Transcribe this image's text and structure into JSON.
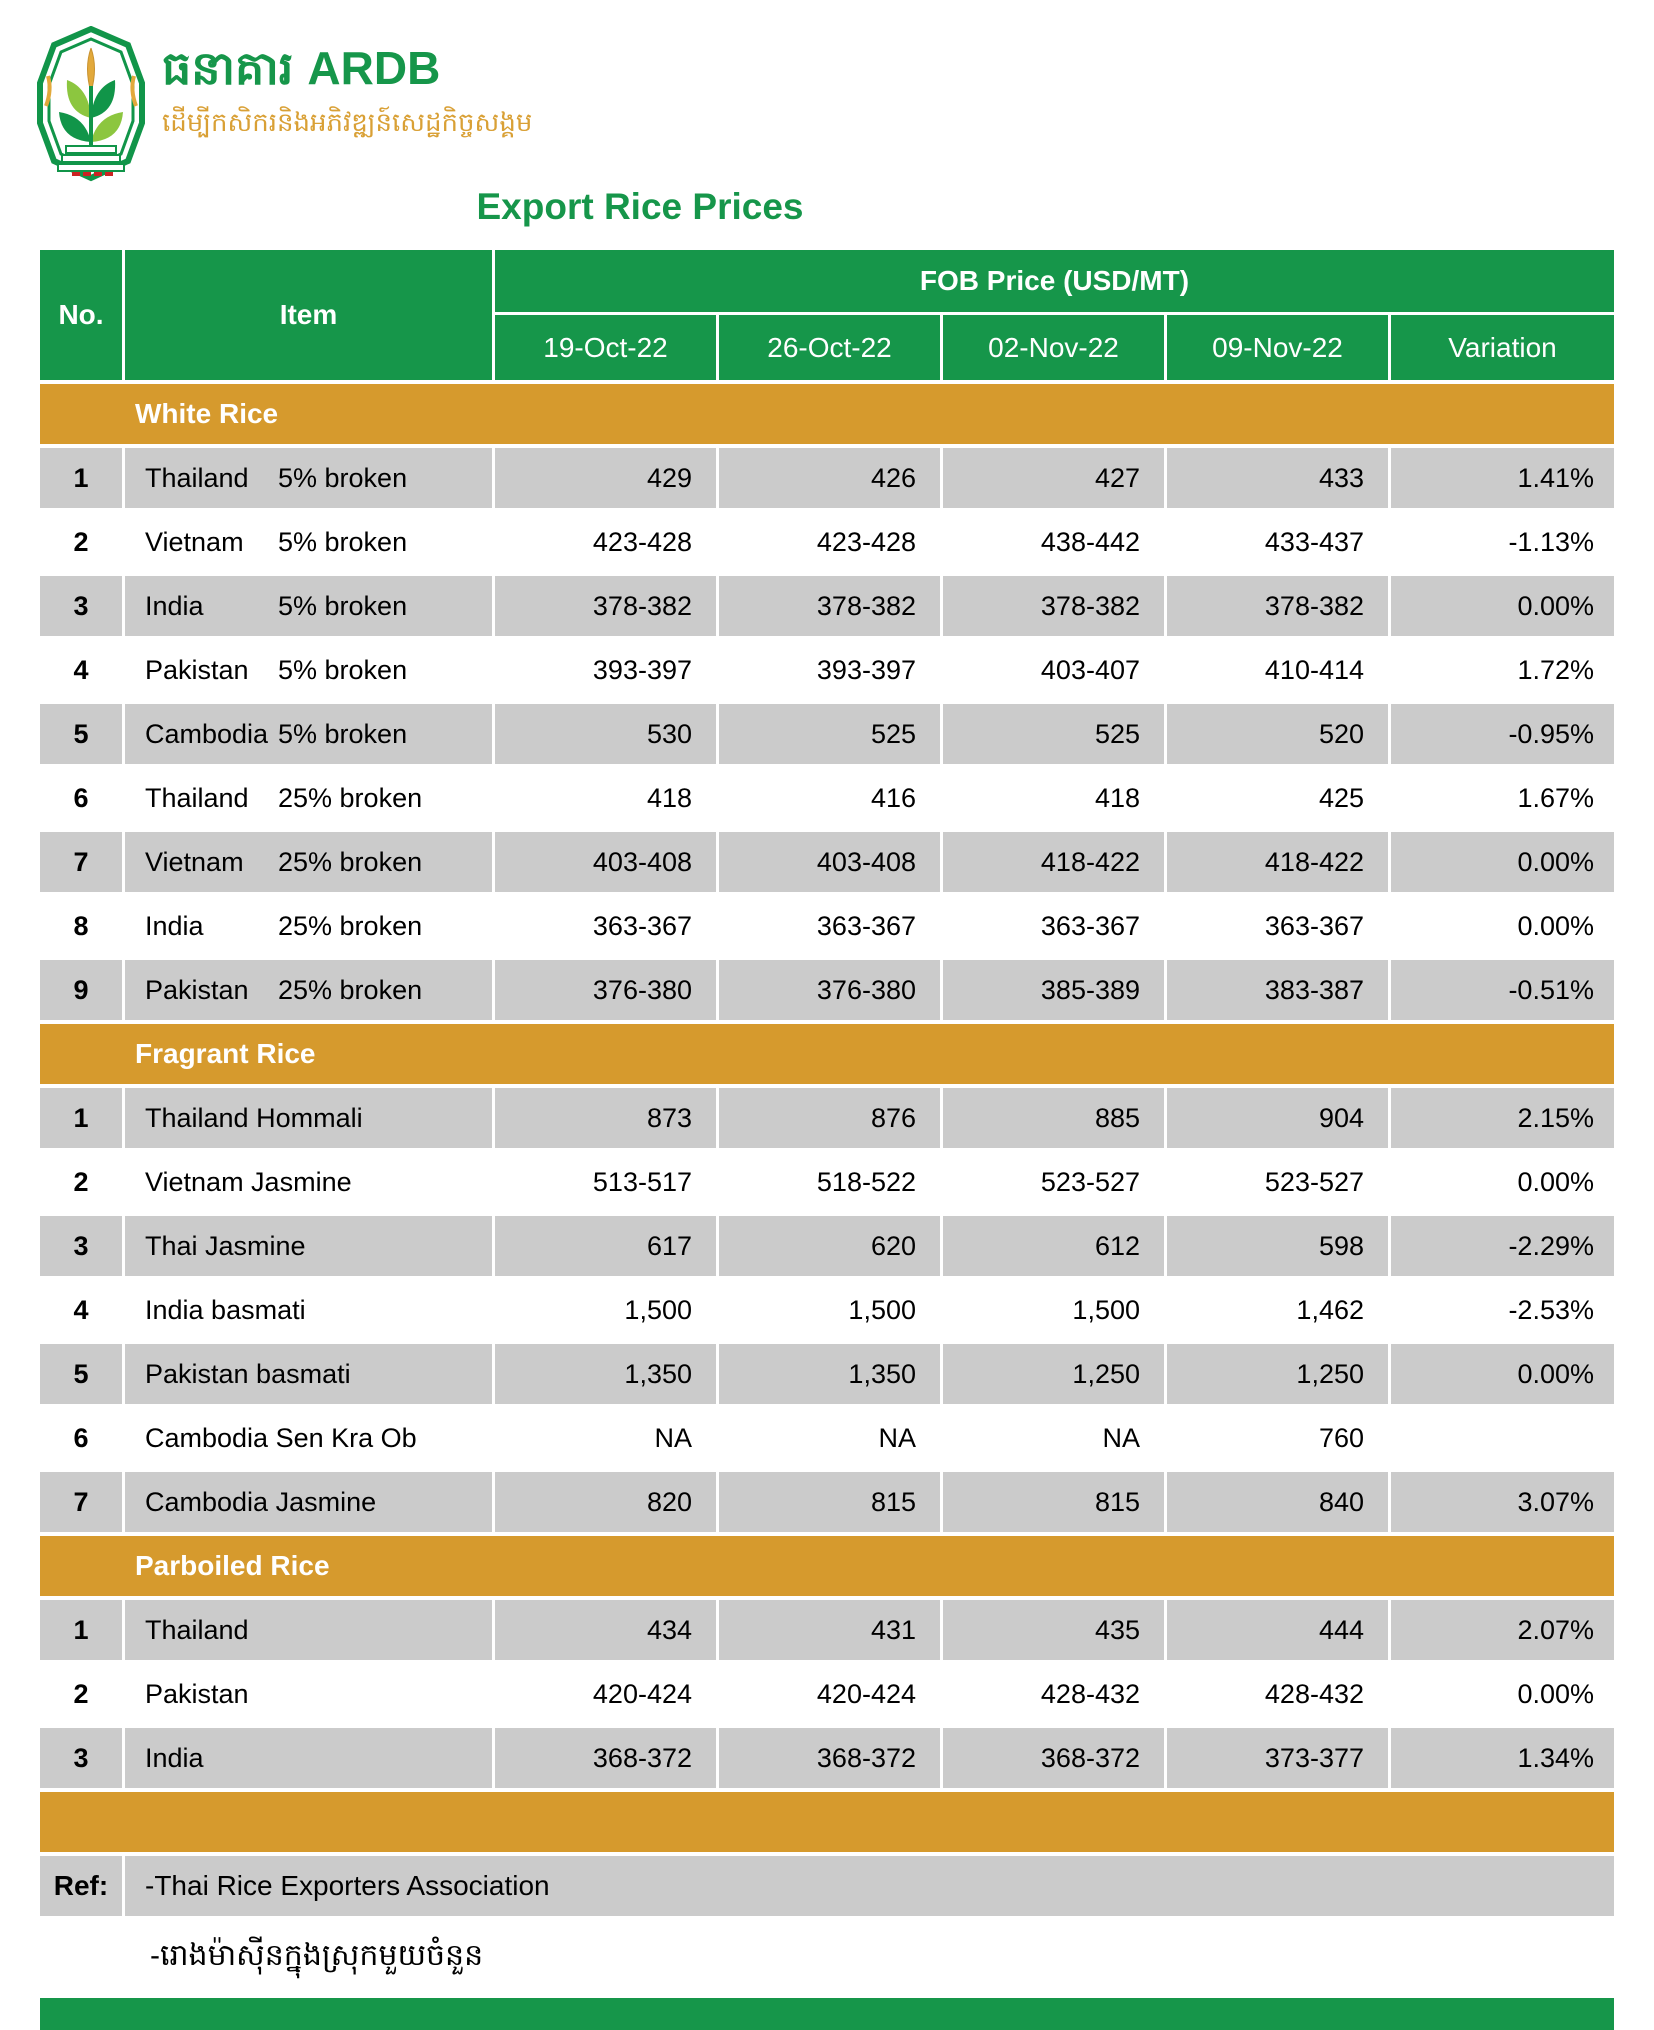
{
  "brand": {
    "khmer_name": "ធនាគារ",
    "latin_name": "ARDB",
    "tagline": "ដើម្បីកសិករនិងអភិវឌ្ឍន៍សេដ្ឋកិច្ចសង្គម"
  },
  "title": "Export Rice Prices",
  "table": {
    "col_no": "No.",
    "col_item": "Item",
    "col_group": "FOB Price (USD/MT)",
    "date_cols": [
      "19-Oct-22",
      "26-Oct-22",
      "02-Nov-22",
      "09-Nov-22"
    ],
    "col_variation": "Variation",
    "sections": [
      {
        "name": "White Rice",
        "rows": [
          {
            "no": "1",
            "name": "Thailand",
            "spec": "5% broken",
            "prices": [
              "429",
              "426",
              "427",
              "433"
            ],
            "variation": "1.41%"
          },
          {
            "no": "2",
            "name": "Vietnam",
            "spec": "5% broken",
            "prices": [
              "423-428",
              "423-428",
              "438-442",
              "433-437"
            ],
            "variation": "-1.13%"
          },
          {
            "no": "3",
            "name": "India",
            "spec": "5% broken",
            "prices": [
              "378-382",
              "378-382",
              "378-382",
              "378-382"
            ],
            "variation": "0.00%"
          },
          {
            "no": "4",
            "name": "Pakistan",
            "spec": "5% broken",
            "prices": [
              "393-397",
              "393-397",
              "403-407",
              "410-414"
            ],
            "variation": "1.72%"
          },
          {
            "no": "5",
            "name": "Cambodia",
            "spec": "5% broken",
            "prices": [
              "530",
              "525",
              "525",
              "520"
            ],
            "variation": "-0.95%"
          },
          {
            "no": "6",
            "name": "Thailand",
            "spec": "25% broken",
            "prices": [
              "418",
              "416",
              "418",
              "425"
            ],
            "variation": "1.67%"
          },
          {
            "no": "7",
            "name": "Vietnam",
            "spec": "25% broken",
            "prices": [
              "403-408",
              "403-408",
              "418-422",
              "418-422"
            ],
            "variation": "0.00%"
          },
          {
            "no": "8",
            "name": "India",
            "spec": "25% broken",
            "prices": [
              "363-367",
              "363-367",
              "363-367",
              "363-367"
            ],
            "variation": "0.00%"
          },
          {
            "no": "9",
            "name": "Pakistan",
            "spec": "25% broken",
            "prices": [
              "376-380",
              "376-380",
              "385-389",
              "383-387"
            ],
            "variation": "-0.51%"
          }
        ]
      },
      {
        "name": "Fragrant Rice",
        "rows": [
          {
            "no": "1",
            "name": "Thailand Hommali",
            "spec": "",
            "prices": [
              "873",
              "876",
              "885",
              "904"
            ],
            "variation": "2.15%"
          },
          {
            "no": "2",
            "name": "Vietnam Jasmine",
            "spec": "",
            "prices": [
              "513-517",
              "518-522",
              "523-527",
              "523-527"
            ],
            "variation": "0.00%"
          },
          {
            "no": "3",
            "name": "Thai Jasmine",
            "spec": "",
            "prices": [
              "617",
              "620",
              "612",
              "598"
            ],
            "variation": "-2.29%"
          },
          {
            "no": "4",
            "name": "India basmati",
            "spec": "",
            "prices": [
              "1,500",
              "1,500",
              "1,500",
              "1,462"
            ],
            "variation": "-2.53%"
          },
          {
            "no": "5",
            "name": "Pakistan basmati",
            "spec": "",
            "prices": [
              "1,350",
              "1,350",
              "1,250",
              "1,250"
            ],
            "variation": "0.00%"
          },
          {
            "no": "6",
            "name": "Cambodia Sen Kra Ob",
            "spec": "",
            "prices": [
              "NA",
              "NA",
              "NA",
              "760"
            ],
            "variation": ""
          },
          {
            "no": "7",
            "name": "Cambodia Jasmine",
            "spec": "",
            "prices": [
              "820",
              "815",
              "815",
              "840"
            ],
            "variation": "3.07%"
          }
        ]
      },
      {
        "name": "Parboiled Rice",
        "rows": [
          {
            "no": "1",
            "name": "Thailand",
            "spec": "",
            "prices": [
              "434",
              "431",
              "435",
              "444"
            ],
            "variation": "2.07%"
          },
          {
            "no": "2",
            "name": "Pakistan",
            "spec": "",
            "prices": [
              "420-424",
              "420-424",
              "428-432",
              "428-432"
            ],
            "variation": "0.00%"
          },
          {
            "no": "3",
            "name": "India",
            "spec": "",
            "prices": [
              "368-372",
              "368-372",
              "368-372",
              "373-377"
            ],
            "variation": "1.34%"
          }
        ]
      }
    ],
    "ref_label": "Ref:",
    "ref_text": "-Thai Rice Exporters Association",
    "note_khmer": "-រោងម៉ាស៊ីនក្នុងស្រុកមួយចំនួន"
  },
  "colors": {
    "green": "#16964A",
    "gold": "#D69A2D",
    "row_gray": "#CBCBCB",
    "tagline_gold": "#D9A035"
  }
}
